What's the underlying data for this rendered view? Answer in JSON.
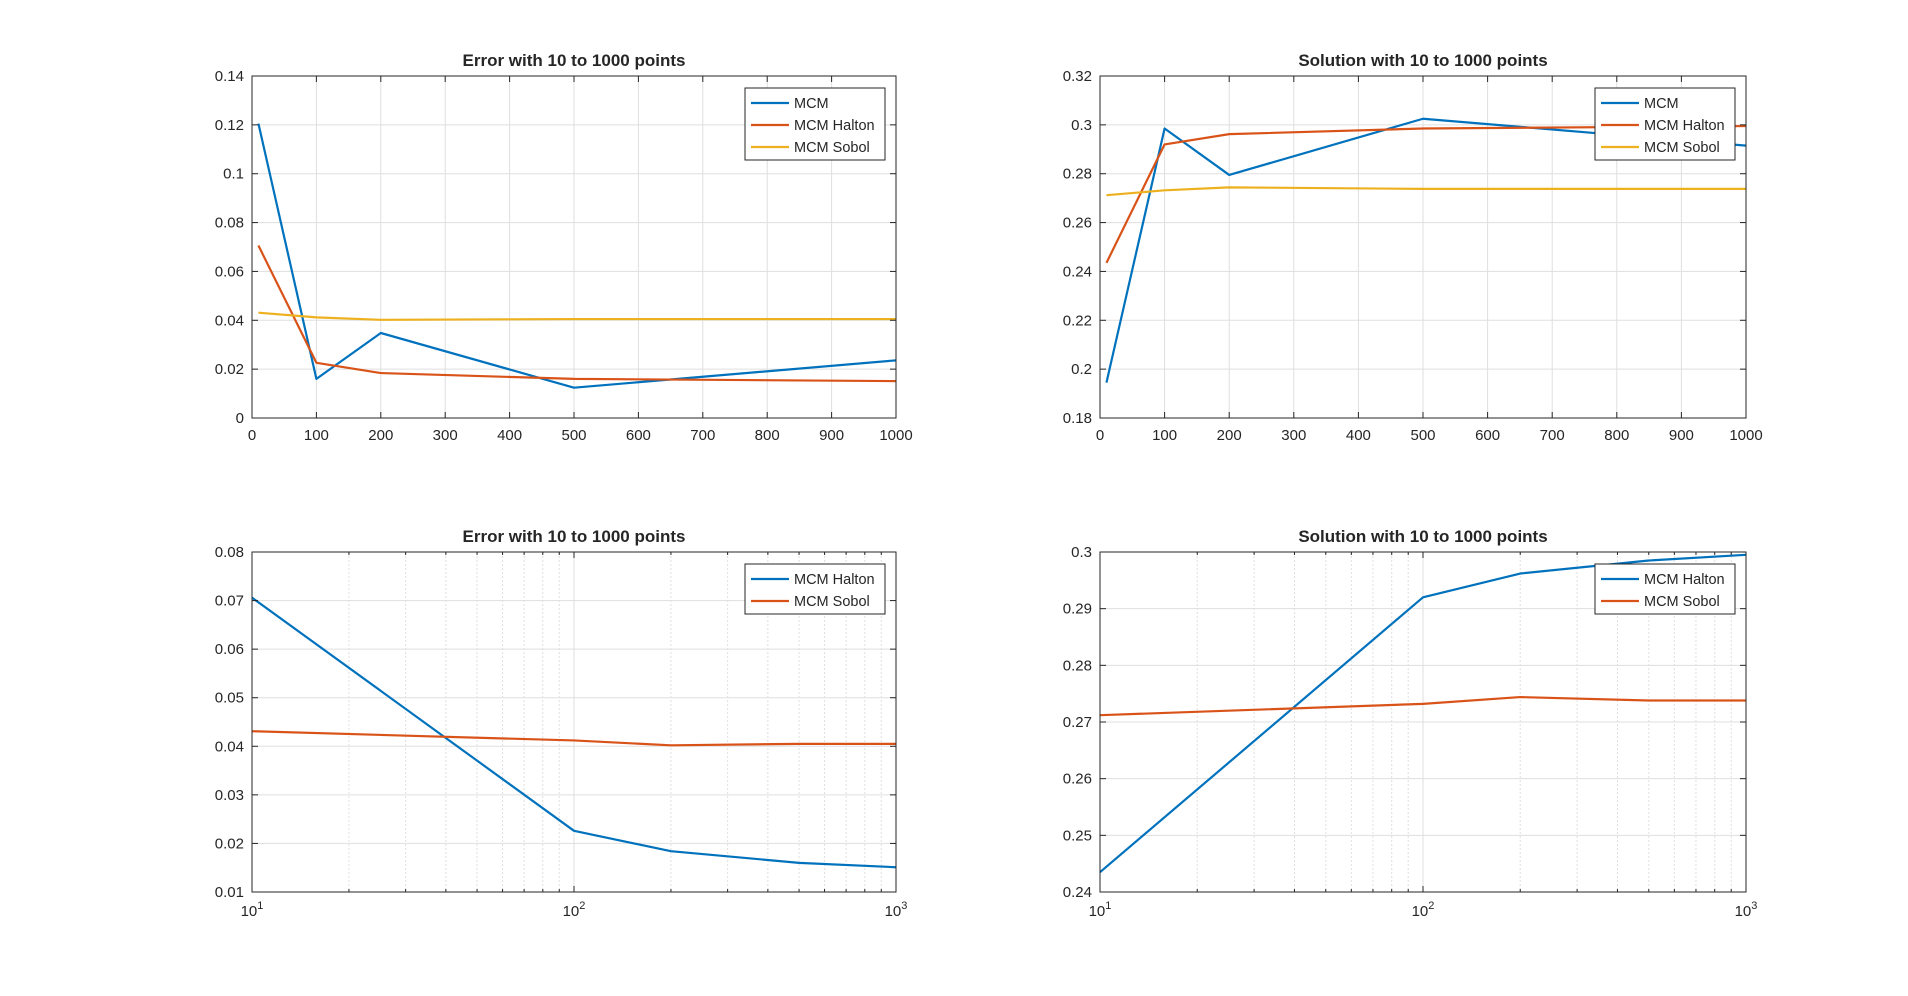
{
  "colors": {
    "series1": "#0072BD",
    "series2": "#D95319",
    "series3": "#EDB120",
    "axis": "#262626",
    "grid": "#DFDFDF"
  },
  "chart_data": [
    {
      "type": "line",
      "title": "Error with 10 to 1000 points",
      "xscale": "linear",
      "xlim": [
        0,
        1000
      ],
      "ylim": [
        0,
        0.14
      ],
      "xticks": [
        0,
        100,
        200,
        300,
        400,
        500,
        600,
        700,
        800,
        900,
        1000
      ],
      "yticks": [
        0,
        0.02,
        0.04,
        0.06,
        0.08,
        0.1,
        0.12,
        0.14
      ],
      "x": [
        10,
        100,
        200,
        500,
        1000
      ],
      "grid": true,
      "legend": "top-right",
      "series": [
        {
          "name": "MCM",
          "values": [
            0.1205,
            0.016,
            0.0348,
            0.0124,
            0.0236
          ]
        },
        {
          "name": "MCM Halton",
          "values": [
            0.0706,
            0.0226,
            0.0184,
            0.016,
            0.0151
          ]
        },
        {
          "name": "MCM Sobol",
          "values": [
            0.0431,
            0.0412,
            0.0402,
            0.0405,
            0.0405
          ]
        }
      ]
    },
    {
      "type": "line",
      "title": "Solution with 10 to 1000 points",
      "xscale": "linear",
      "xlim": [
        0,
        1000
      ],
      "ylim": [
        0.18,
        0.32
      ],
      "xticks": [
        0,
        100,
        200,
        300,
        400,
        500,
        600,
        700,
        800,
        900,
        1000
      ],
      "yticks": [
        0.18,
        0.2,
        0.22,
        0.24,
        0.26,
        0.28,
        0.3,
        0.32
      ],
      "x": [
        10,
        100,
        200,
        500,
        1000
      ],
      "grid": true,
      "legend": "top-right",
      "series": [
        {
          "name": "MCM",
          "values": [
            0.1945,
            0.2985,
            0.2795,
            0.3025,
            0.2915
          ]
        },
        {
          "name": "MCM Halton",
          "values": [
            0.2435,
            0.292,
            0.2962,
            0.2985,
            0.2995
          ]
        },
        {
          "name": "MCM Sobol",
          "values": [
            0.2712,
            0.2732,
            0.2744,
            0.2738,
            0.2738
          ]
        }
      ]
    },
    {
      "type": "line",
      "title": "Error with 10 to 1000 points",
      "xscale": "log",
      "xlim": [
        10,
        1000
      ],
      "ylim": [
        0.01,
        0.08
      ],
      "xticks": [
        10,
        100,
        1000
      ],
      "xticklabels": [
        {
          "base": "10",
          "exp": "1"
        },
        {
          "base": "10",
          "exp": "2"
        },
        {
          "base": "10",
          "exp": "3"
        }
      ],
      "yticks": [
        0.01,
        0.02,
        0.03,
        0.04,
        0.05,
        0.06,
        0.07,
        0.08
      ],
      "x": [
        10,
        100,
        200,
        500,
        1000
      ],
      "grid": true,
      "legend": "top-right",
      "series": [
        {
          "name": "MCM Halton",
          "values": [
            0.0706,
            0.0226,
            0.0184,
            0.016,
            0.0151
          ]
        },
        {
          "name": "MCM Sobol",
          "values": [
            0.0431,
            0.0412,
            0.0402,
            0.0405,
            0.0405
          ]
        }
      ]
    },
    {
      "type": "line",
      "title": "Solution with 10 to 1000 points",
      "xscale": "log",
      "xlim": [
        10,
        1000
      ],
      "ylim": [
        0.24,
        0.3
      ],
      "xticks": [
        10,
        100,
        1000
      ],
      "xticklabels": [
        {
          "base": "10",
          "exp": "1"
        },
        {
          "base": "10",
          "exp": "2"
        },
        {
          "base": "10",
          "exp": "3"
        }
      ],
      "yticks": [
        0.24,
        0.25,
        0.26,
        0.27,
        0.28,
        0.29,
        0.3
      ],
      "x": [
        10,
        100,
        200,
        500,
        1000
      ],
      "grid": true,
      "legend": "top-right",
      "series": [
        {
          "name": "MCM Halton",
          "values": [
            0.2435,
            0.292,
            0.2962,
            0.2985,
            0.2995
          ]
        },
        {
          "name": "MCM Sobol",
          "values": [
            0.2712,
            0.2732,
            0.2744,
            0.2738,
            0.2738
          ]
        }
      ]
    }
  ]
}
